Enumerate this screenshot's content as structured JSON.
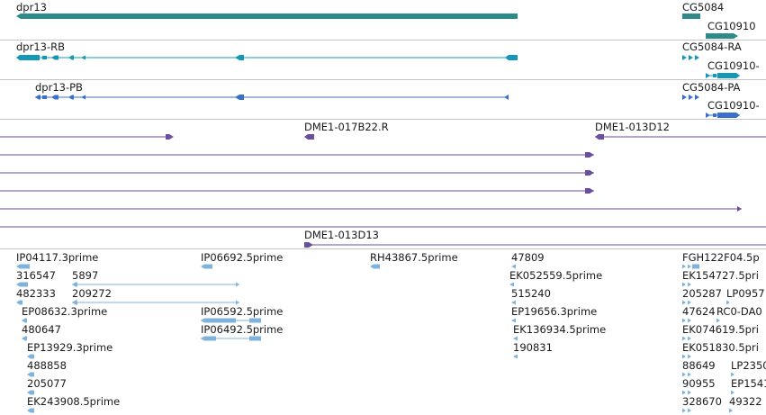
{
  "colors": {
    "gene": "#2e8b8b",
    "rna_cyan": "#1597b8",
    "rna_blue": "#3a6fcf",
    "clone": "#6a4ea0",
    "est": "#7fb3dc",
    "separator": "#c4c4c4"
  },
  "genes": {
    "dpr13": "dpr13",
    "cg5084": "CG5084",
    "cg10910": "CG10910"
  },
  "transcripts": {
    "dpr13_rb": "dpr13-RB",
    "cg5084_ra": "CG5084-RA",
    "cg10910_r": "CG10910-",
    "dpr13_pb": "dpr13-PB",
    "cg5084_pa": "CG5084-PA",
    "cg10910_p": "CG10910-"
  },
  "clones": {
    "c017b22": "DME1-017B22.R",
    "c013d12": "DME1-013D12",
    "c013d13": "DME1-013D13"
  },
  "ests": {
    "e01": "IP04117.3prime",
    "e02": "IP06692.5prime",
    "e03": "RH43867.5prime",
    "e04": "47809",
    "e05": "FGH122F04.5p",
    "e06": "316547",
    "e07": "5897",
    "e08": "EK052559.5prime",
    "e09": "EK154727.5pri",
    "e10": "482333",
    "e11": "209272",
    "e12": "515240",
    "e13": "205287",
    "e14": "LP0957",
    "e15": "EP08632.3prime",
    "e16": "IP06592.5prime",
    "e17": "EP19656.3prime",
    "e18": "47624",
    "e19": "RC0-DA0",
    "e20": "480647",
    "e21": "IP06492.5prime",
    "e22": "EK136934.5prime",
    "e23": "EK074619.5pri",
    "e24": "EP13929.3prime",
    "e25": "190831",
    "e26": "EK051830.5pri",
    "e27": "488858",
    "e28": "88649",
    "e29": "LP2350",
    "e30": "205077",
    "e31": "90955",
    "e32": "EP1541",
    "e33": "EK243908.5prime",
    "e34": "328670",
    "e35": "49322"
  }
}
